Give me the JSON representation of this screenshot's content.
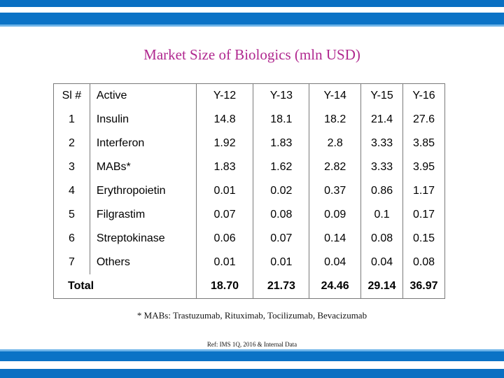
{
  "title": "Market Size of Biologics (mln USD)",
  "table": {
    "headers": [
      "Sl #",
      "Active",
      "Y-12",
      "Y-13",
      "Y-14",
      "Y-15",
      "Y-16"
    ],
    "rows": [
      [
        "1",
        "Insulin",
        "14.8",
        "18.1",
        "18.2",
        "21.4",
        "27.6"
      ],
      [
        "2",
        "Interferon",
        "1.92",
        "1.83",
        "2.8",
        "3.33",
        "3.85"
      ],
      [
        "3",
        "MABs*",
        "1.83",
        "1.62",
        "2.82",
        "3.33",
        "3.95"
      ],
      [
        "4",
        "Erythropoietin",
        "0.01",
        "0.02",
        "0.37",
        "0.86",
        "1.17"
      ],
      [
        "5",
        "Filgrastim",
        "0.07",
        "0.08",
        "0.09",
        "0.1",
        "0.17"
      ],
      [
        "6",
        "Streptokinase",
        "0.06",
        "0.07",
        "0.14",
        "0.08",
        "0.15"
      ],
      [
        "7",
        "Others",
        "0.01",
        "0.01",
        "0.04",
        "0.04",
        "0.08"
      ]
    ],
    "total": {
      "label": "Total",
      "values": [
        "18.70",
        "21.73",
        "24.46",
        "29.14",
        "36.97"
      ]
    }
  },
  "footnote": "* MABs: Trastuzumab, Rituximab, Tocilizumab, Bevacizumab",
  "ref": "Ref: IMS 1Q, 2016 & Internal Data",
  "colors": {
    "title": "#b0288f",
    "bar": "#0a6fc2",
    "bar_light": "#6fb4e8"
  }
}
